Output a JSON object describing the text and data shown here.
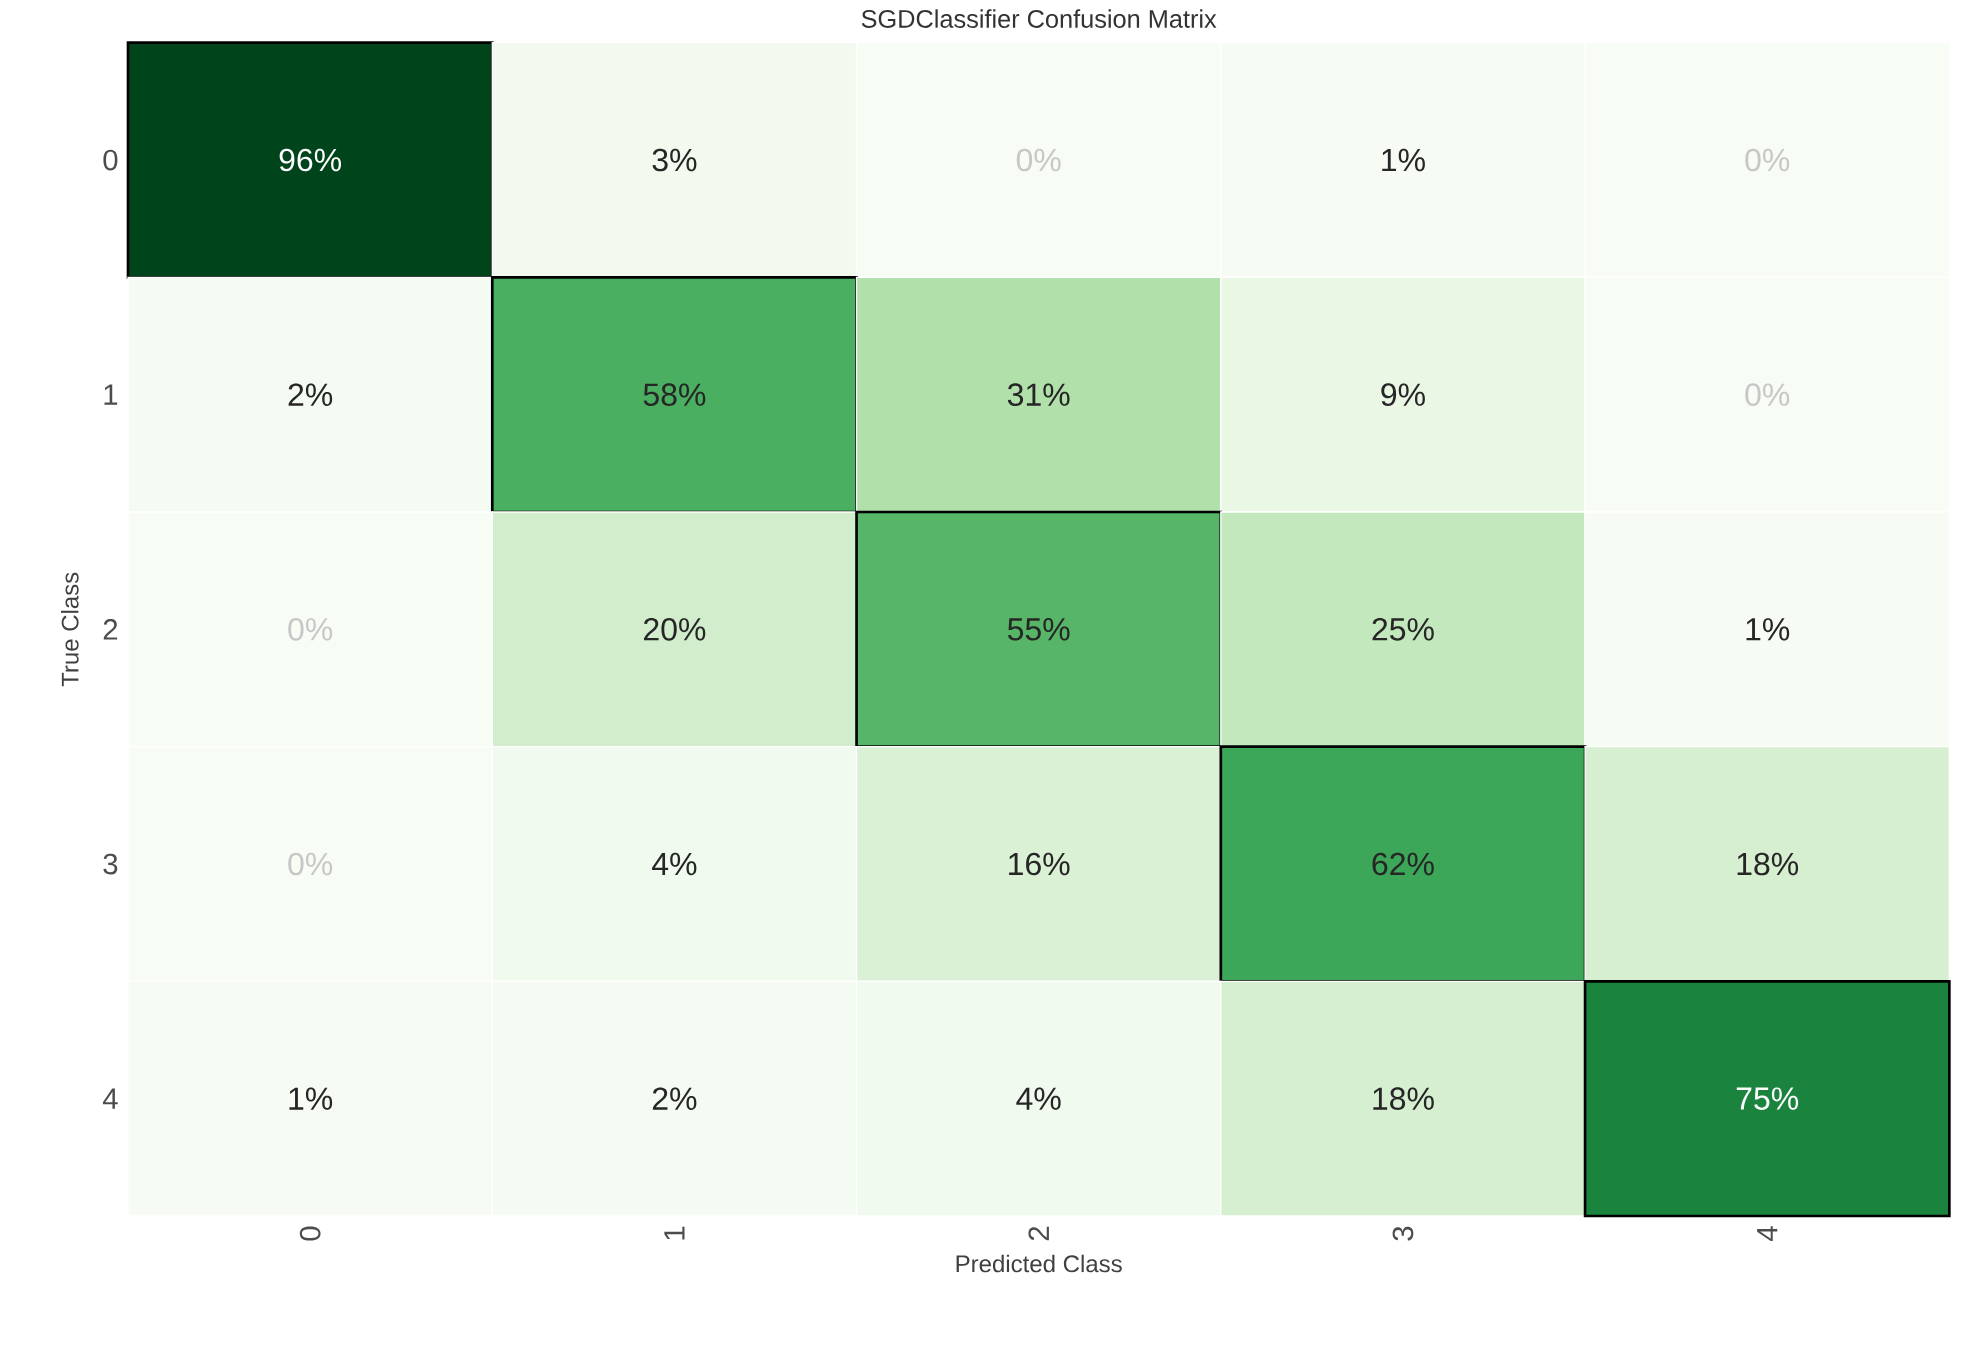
{
  "chart_data": {
    "type": "heatmap",
    "title": "SGDClassifier Confusion Matrix",
    "xlabel": "Predicted Class",
    "ylabel": "True Class",
    "categories": [
      "0",
      "1",
      "2",
      "3",
      "4"
    ],
    "y_categories": [
      "0",
      "1",
      "2",
      "3",
      "4"
    ],
    "cells": [
      [
        96,
        3,
        0,
        1,
        0
      ],
      [
        2,
        58,
        31,
        9,
        0
      ],
      [
        0,
        20,
        55,
        25,
        1
      ],
      [
        0,
        4,
        16,
        62,
        18
      ],
      [
        1,
        2,
        4,
        18,
        75
      ]
    ],
    "cell_labels": [
      [
        "96%",
        "3%",
        "0%",
        "1%",
        "0%"
      ],
      [
        "2%",
        "58%",
        "31%",
        "9%",
        "0%"
      ],
      [
        "0%",
        "20%",
        "55%",
        "25%",
        "1%"
      ],
      [
        "0%",
        "4%",
        "16%",
        "62%",
        "18%"
      ],
      [
        "1%",
        "2%",
        "4%",
        "18%",
        "75%"
      ]
    ]
  }
}
